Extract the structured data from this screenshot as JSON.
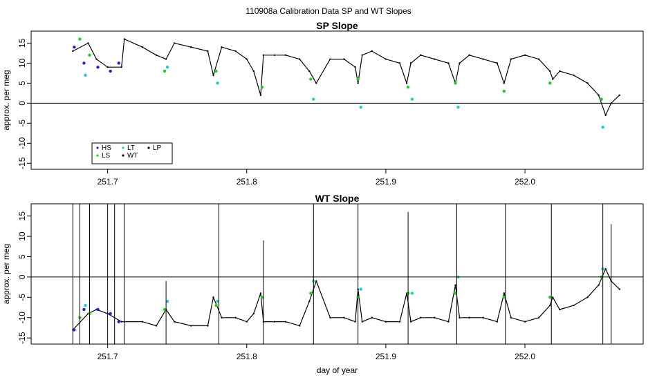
{
  "figure_title": "110908a   Calibration Data SP and WT Slopes",
  "colors": {
    "HS": "#2222cc",
    "LS": "#22cc22",
    "LT": "#22cccc",
    "WT": "#000000",
    "LP": "#000000",
    "zero_line": "#000000"
  },
  "chart_data": [
    {
      "type": "line",
      "title": "SP Slope",
      "xlabel": "",
      "ylabel": "approx. per meg",
      "xlim": [
        251.645,
        252.085
      ],
      "ylim": [
        -16.5,
        18
      ],
      "x_ticks": [
        "251.7",
        "251.8",
        "251.9",
        "252.0"
      ],
      "x_tick_values": [
        251.7,
        251.8,
        251.9,
        252.0
      ],
      "y_ticks": [
        "-15",
        "-10",
        "-5",
        "0",
        "5",
        "10",
        "15"
      ],
      "y_tick_values": [
        -15,
        -10,
        -5,
        0,
        5,
        10,
        15
      ],
      "reference_line_y": 0,
      "legend": {
        "placement": "bottom-left",
        "entries": [
          {
            "label": "HS",
            "color_key": "HS"
          },
          {
            "label": "LT",
            "color_key": "LT"
          },
          {
            "label": "LP",
            "color_key": "LP"
          },
          {
            "label": "LS",
            "color_key": "LS"
          },
          {
            "label": "WT",
            "color_key": "WT"
          }
        ]
      },
      "series": [
        {
          "name": "WT",
          "color_key": "WT",
          "x": [
            251.675,
            251.686,
            251.692,
            251.7,
            251.71,
            251.712,
            251.725,
            251.735,
            251.742,
            251.748,
            251.76,
            251.772,
            251.776,
            251.782,
            251.792,
            251.8,
            251.805,
            251.81,
            251.812,
            251.82,
            251.828,
            251.838,
            251.845,
            251.85,
            251.86,
            251.87,
            251.878,
            251.88,
            251.883,
            251.89,
            251.9,
            251.91,
            251.915,
            251.918,
            251.925,
            251.935,
            251.945,
            251.95,
            251.953,
            251.96,
            251.97,
            251.98,
            251.985,
            251.99,
            252.0,
            252.01,
            252.018,
            252.02,
            252.025,
            252.035,
            252.045,
            252.053,
            252.058,
            252.062,
            252.068
          ],
          "y": [
            13,
            15,
            11,
            9,
            9,
            16,
            14,
            12,
            11,
            15,
            14,
            13,
            7,
            14,
            13,
            11,
            8,
            2,
            12,
            12,
            12,
            11,
            8,
            5,
            11,
            11,
            9,
            5,
            12,
            13,
            11,
            10,
            5,
            10,
            12,
            11,
            10,
            5,
            10,
            12,
            11,
            10,
            5,
            11,
            12,
            11,
            8,
            6,
            8,
            7,
            5,
            2,
            -3,
            0,
            2
          ]
        },
        {
          "name": "HS",
          "color_key": "HS",
          "x": [
            251.676,
            251.683,
            251.693,
            251.702,
            251.708
          ],
          "y": [
            14,
            10,
            9,
            8,
            10
          ]
        },
        {
          "name": "LS",
          "color_key": "LS",
          "x": [
            251.68,
            251.687,
            251.741,
            251.778,
            251.811,
            251.846,
            251.88,
            251.916,
            251.95,
            251.985,
            252.018,
            252.055
          ],
          "y": [
            16,
            12,
            8,
            8,
            4,
            6,
            6,
            4,
            5,
            3,
            5,
            1
          ]
        },
        {
          "name": "LT",
          "color_key": "LT",
          "x": [
            251.684,
            251.743,
            251.779,
            251.848,
            251.882,
            251.919,
            251.952,
            252.056
          ],
          "y": [
            7,
            9,
            5,
            1,
            -1,
            1,
            -1,
            -6
          ]
        }
      ]
    },
    {
      "type": "line",
      "title": "WT Slope",
      "xlabel": "day of year",
      "ylabel": "approx. per meg",
      "xlim": [
        251.645,
        252.085
      ],
      "ylim": [
        -16.5,
        18
      ],
      "x_ticks": [
        "251.7",
        "251.8",
        "251.9",
        "252.0"
      ],
      "x_tick_values": [
        251.7,
        251.8,
        251.9,
        252.0
      ],
      "y_ticks": [
        "-15",
        "-10",
        "-5",
        "0",
        "5",
        "10",
        "15"
      ],
      "y_tick_values": [
        -15,
        -10,
        -5,
        0,
        5,
        10,
        15
      ],
      "reference_line_y": 0,
      "series": [
        {
          "name": "WT",
          "color_key": "WT",
          "x": [
            251.675,
            251.686,
            251.692,
            251.7,
            251.71,
            251.712,
            251.725,
            251.735,
            251.742,
            251.748,
            251.76,
            251.772,
            251.776,
            251.782,
            251.792,
            251.8,
            251.805,
            251.81,
            251.812,
            251.82,
            251.828,
            251.838,
            251.845,
            251.85,
            251.86,
            251.87,
            251.878,
            251.88,
            251.883,
            251.89,
            251.9,
            251.91,
            251.915,
            251.918,
            251.925,
            251.935,
            251.945,
            251.95,
            251.953,
            251.96,
            251.97,
            251.98,
            251.985,
            251.99,
            252.0,
            252.01,
            252.018,
            252.02,
            252.025,
            252.035,
            252.045,
            252.053,
            252.058,
            252.062,
            252.068
          ],
          "y": [
            -13,
            -9,
            -8,
            -9,
            -11,
            -11,
            -11,
            -12,
            -8,
            -11,
            -12,
            -12,
            -5,
            -10,
            -10,
            -11,
            -9,
            -4,
            -11,
            -11,
            -11,
            -12,
            -6,
            -1,
            -10,
            -10,
            -11,
            -3,
            -11,
            -10,
            -11,
            -11,
            -4,
            -11,
            -10,
            -10,
            -11,
            -2,
            -10,
            -10,
            -10,
            -11,
            -4,
            -10,
            -11,
            -10,
            -7,
            -5,
            -8,
            -7,
            -5,
            -2,
            2,
            -1,
            -3
          ]
        },
        {
          "name": "HS",
          "color_key": "HS",
          "x": [
            251.676,
            251.683,
            251.693,
            251.702,
            251.708
          ],
          "y": [
            -13,
            -8,
            -8,
            -9,
            -11
          ]
        },
        {
          "name": "LS",
          "color_key": "LS",
          "x": [
            251.68,
            251.687,
            251.741,
            251.778,
            251.811,
            251.846,
            251.88,
            251.916,
            251.95,
            251.985,
            252.018,
            252.055
          ],
          "y": [
            -10,
            -9,
            -8,
            -7,
            -5,
            -4,
            -5,
            -4,
            -4,
            -5,
            -5,
            0
          ]
        },
        {
          "name": "LT",
          "color_key": "LT",
          "x": [
            251.684,
            251.743,
            251.779,
            251.848,
            251.882,
            251.919,
            251.952,
            252.056
          ],
          "y": [
            -7,
            -6,
            -6,
            -1,
            -3,
            -4,
            0,
            2
          ]
        },
        {
          "name": "spikes",
          "color_key": "WT",
          "x": [
            251.675,
            251.68,
            251.687,
            251.7,
            251.705,
            251.712,
            251.742,
            251.78,
            251.812,
            251.848,
            251.88,
            251.916,
            251.951,
            251.986,
            252.019,
            252.056,
            252.062
          ],
          "y": [
            18,
            18,
            18,
            18,
            18,
            18,
            -1,
            18,
            9,
            18,
            18,
            16,
            18,
            18,
            18,
            18,
            13
          ]
        }
      ]
    }
  ]
}
